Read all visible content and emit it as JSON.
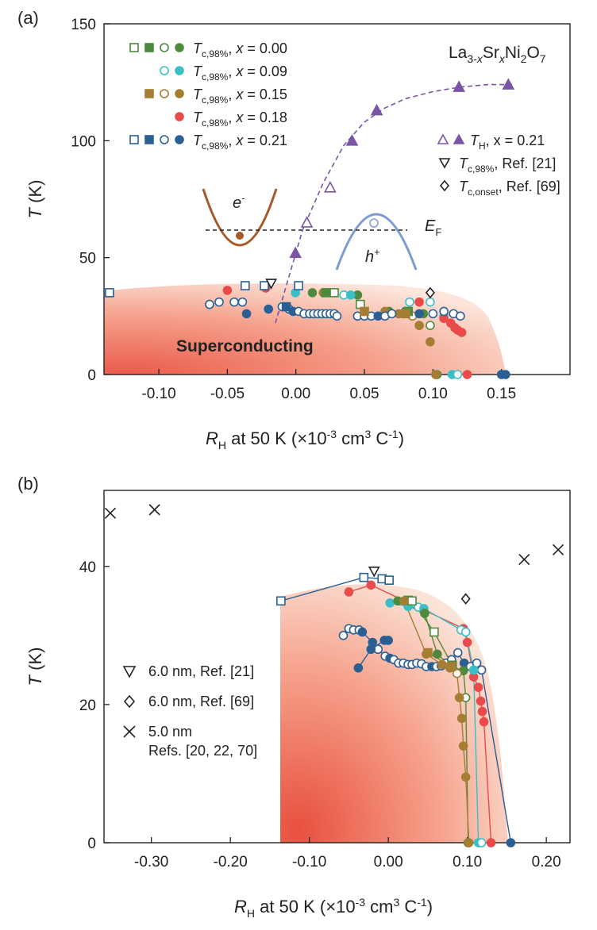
{
  "colors": {
    "x000": "#4e8a3c",
    "x009": "#3bbfc6",
    "x015": "#a57d33",
    "x018": "#e94b4a",
    "x021": "#2a5f93",
    "tH": "#7a55a6",
    "band_e": "#a8592a",
    "band_h": "#7d9cd0",
    "marker_ref": "#222222"
  },
  "chart_data": [
    {
      "panel": "(a)",
      "type": "scatter",
      "title": "La3-xSrxNi2O7",
      "formula": {
        "t1": "La",
        "s1": "3-",
        "s2": "x",
        "t2": "Sr",
        "s3": "x",
        "t3": "Ni",
        "s4": "2",
        "t4": "O",
        "s5": "7"
      },
      "xlabel": {
        "main": "R",
        "sub": "H",
        "text": " at 50 K (×10",
        "sup1": "-3",
        "mid": " cm",
        "sup2": "3",
        "end": " C",
        "sup3": "-1",
        "close": ")"
      },
      "ylabel": {
        "italic": "T",
        "unit": " (K)"
      },
      "xlim": [
        -0.14,
        0.2
      ],
      "ylim": [
        0,
        150
      ],
      "xticks": [
        "-0.10",
        "-0.05",
        "0.00",
        "0.05",
        "0.10",
        "0.15"
      ],
      "xtick_values": [
        -0.1,
        -0.05,
        0.0,
        0.05,
        0.1,
        0.15
      ],
      "yticks": [
        "0",
        "50",
        "100",
        "150"
      ],
      "ytick_values": [
        0,
        50,
        100,
        150
      ],
      "region_label": "Superconducting",
      "inset": {
        "electron": "e",
        "electron_sup": "-",
        "hole": "h",
        "hole_sup": "+",
        "fermi": "E",
        "fermi_sub": "F"
      },
      "legend_left": [
        {
          "sub": "c,98%",
          "x": "0.00"
        },
        {
          "sub": "c,98%",
          "x": "0.09"
        },
        {
          "sub": "c,98%",
          "x": "0.15"
        },
        {
          "sub": "c,98%",
          "x": "0.18"
        },
        {
          "sub": "c,98%",
          "x": "0.21"
        }
      ],
      "legend_right": [
        {
          "sub": "H",
          "text": ", x = 0.21"
        },
        {
          "sub": "c,98%",
          "text": ", Ref. [21]"
        },
        {
          "sub": "c,onset",
          "text": ", Ref. [69]"
        }
      ],
      "series": [
        {
          "name": "TH, x = 0.21",
          "color_key": "tH",
          "marker": "tri-up",
          "x": [
            -0.0003,
            0.008,
            0.025,
            0.041,
            0.059,
            0.119,
            0.155
          ],
          "y": [
            52,
            65,
            80,
            100,
            113,
            123,
            124
          ],
          "filled": [
            true,
            false,
            false,
            true,
            true,
            true,
            true
          ],
          "open": [
            false,
            true,
            true,
            false,
            false,
            false,
            false
          ]
        },
        {
          "name": "Tc,98%, x = 0.00",
          "color_key": "x000",
          "marker": "circle",
          "x": [
            0.012,
            0.045,
            0.068,
            0.082,
            0.093,
            0.098,
            0.103
          ],
          "y": [
            35,
            34,
            27,
            27,
            26,
            21,
            0
          ],
          "filled": [
            true,
            true,
            true,
            false,
            true,
            false,
            false
          ]
        },
        {
          "name": "Tc,98%, x = 0.09",
          "color_key": "x009",
          "marker": "circle",
          "x": [
            -0.0003,
            0.035,
            0.04,
            0.083,
            0.098,
            0.108,
            0.114,
            0.118
          ],
          "y": [
            35,
            34,
            34,
            31,
            31,
            25,
            0,
            0
          ],
          "filled": [
            true,
            false,
            true,
            false,
            false,
            true,
            true,
            false
          ]
        },
        {
          "name": "Tc,98%, x = 0.15",
          "color_key": "x015",
          "marker": "circle",
          "x": [
            0.02,
            0.05,
            0.065,
            0.075,
            0.085,
            0.09,
            0.098,
            0.102
          ],
          "y": [
            35,
            26,
            27,
            26,
            25,
            21,
            14,
            0
          ],
          "filled": [
            true,
            true,
            true,
            true,
            false,
            true,
            true,
            true
          ]
        },
        {
          "name": "Tc,98%, x = 0.18",
          "color_key": "x018",
          "marker": "circle",
          "x": [
            -0.05,
            -0.022,
            0.09,
            0.108,
            0.113,
            0.116,
            0.118,
            0.121,
            0.125
          ],
          "y": [
            36,
            37,
            31,
            24,
            22,
            20,
            19,
            18,
            0
          ],
          "filled": [
            true,
            true,
            true,
            true,
            true,
            true,
            true,
            true,
            true
          ]
        },
        {
          "name": "Tc,98%, x = 0.21",
          "color_key": "x021",
          "marker": "circle",
          "x": [
            -0.063,
            -0.056,
            -0.045,
            -0.039,
            -0.036,
            -0.02,
            -0.01,
            -0.005,
            -0.002,
            0.002,
            0.006,
            0.01,
            0.013,
            0.016,
            0.019,
            0.022,
            0.025,
            0.028,
            0.03,
            0.045,
            0.05,
            0.055,
            0.06,
            0.065,
            0.07,
            0.08,
            0.09,
            0.1,
            0.108,
            0.115,
            0.12,
            0.15,
            0.153
          ],
          "y": [
            30,
            31,
            31,
            31,
            26,
            28,
            29,
            28,
            27,
            27,
            26,
            26,
            26,
            26,
            26,
            26,
            26,
            26,
            25,
            25,
            25,
            25,
            25,
            25,
            26,
            27,
            26,
            26,
            27,
            26,
            25,
            0,
            0
          ],
          "filled": [
            false,
            false,
            false,
            false,
            true,
            true,
            false,
            false,
            true,
            false,
            false,
            false,
            false,
            false,
            false,
            false,
            false,
            false,
            false,
            false,
            false,
            false,
            true,
            false,
            false,
            false,
            true,
            false,
            false,
            false,
            false,
            true,
            true
          ]
        },
        {
          "name": "Tc,98%, x = 0.00 squares",
          "color_key": "x000",
          "marker": "square",
          "x": [
            0.022,
            0.028,
            0.047,
            0.082
          ],
          "y": [
            35,
            35,
            30,
            27
          ],
          "filled": [
            true,
            false,
            false,
            true
          ]
        },
        {
          "name": "Tc,98%, x = 0.15 squares",
          "color_key": "x015",
          "marker": "square",
          "x": [
            0.05,
            0.08
          ],
          "y": [
            27,
            26
          ],
          "filled": [
            true,
            true
          ]
        },
        {
          "name": "Tc,98%, x = 0.21 squares",
          "color_key": "x021",
          "marker": "square",
          "x": [
            -0.136,
            -0.037,
            -0.023,
            -0.007,
            0.002
          ],
          "y": [
            35,
            38,
            38,
            29,
            38
          ],
          "filled": [
            false,
            false,
            false,
            true,
            false
          ]
        },
        {
          "name": "Tc,98%, Ref. [21]",
          "color_key": "marker_ref",
          "marker": "tri-down",
          "x": [
            -0.018
          ],
          "y": [
            39
          ],
          "filled": [
            false
          ]
        },
        {
          "name": "Tc,onset, Ref. [69]",
          "color_key": "marker_ref",
          "marker": "diamond",
          "x": [
            0.098
          ],
          "y": [
            35
          ],
          "filled": [
            false
          ]
        }
      ],
      "dashed_curve": {
        "x": [
          -0.015,
          -0.005,
          0.005,
          0.02,
          0.035,
          0.05,
          0.065,
          0.08,
          0.1,
          0.12,
          0.14,
          0.16
        ],
        "y": [
          22,
          42,
          62,
          82,
          98,
          108,
          114,
          118,
          121,
          123,
          124,
          124
        ]
      }
    },
    {
      "panel": "(b)",
      "type": "line",
      "xlabel": {
        "main": "R",
        "sub": "H",
        "text": " at 50 K (×10",
        "sup1": "-3",
        "mid": " cm",
        "sup2": "3",
        "end": " C",
        "sup3": "-1",
        "close": ")"
      },
      "ylabel": {
        "italic": "T",
        "unit": " (K)"
      },
      "xlim": [
        -0.36,
        0.23
      ],
      "ylim": [
        0,
        51
      ],
      "xticks": [
        "-0.30",
        "-0.20",
        "-0.10",
        "0.00",
        "0.10",
        "0.20"
      ],
      "xtick_values": [
        -0.3,
        -0.2,
        -0.1,
        0.0,
        0.1,
        0.2
      ],
      "yticks": [
        "0",
        "20",
        "40"
      ],
      "ytick_values": [
        0,
        20,
        40
      ],
      "legend": [
        {
          "marker": "tri-down",
          "label": "6.0 nm, Ref. [21]"
        },
        {
          "marker": "diamond",
          "label": "6.0 nm, Ref. [69]"
        },
        {
          "marker": "cross",
          "label1": "5.0 nm",
          "label2": "Refs. [20, 22, 70]"
        }
      ],
      "series": [
        {
          "name": "x = 0.21 (a)",
          "color_key": "x021",
          "x": [
            -0.136,
            -0.031,
            -0.008,
            0.001
          ],
          "y": [
            35,
            38.4,
            38.2,
            38
          ],
          "marker": "square",
          "filled": [
            false,
            false,
            false,
            false
          ]
        },
        {
          "name": "x = 0.21 (b)",
          "color_key": "x021",
          "x": [
            -0.057,
            -0.05,
            -0.044,
            -0.037,
            -0.033,
            -0.02,
            -0.013,
            -0.004,
            0.002,
            0.007,
            0.013,
            0.019,
            0.025,
            0.03,
            0.036,
            0.042,
            0.048,
            0.055,
            0.061,
            0.067,
            0.073,
            0.08,
            0.088,
            0.096,
            0.104,
            0.112,
            0.118,
            0.155
          ],
          "y": [
            30,
            31,
            30.8,
            30.8,
            30.5,
            29,
            28,
            27,
            26.7,
            26.5,
            26,
            26,
            25.8,
            25.8,
            26,
            25.9,
            25.5,
            25.5,
            25.5,
            25.6,
            26,
            26.5,
            27.5,
            26,
            25.5,
            26,
            25,
            0
          ],
          "marker": "circle",
          "filled": [
            false,
            false,
            false,
            false,
            true,
            true,
            false,
            false,
            true,
            false,
            false,
            false,
            false,
            false,
            false,
            false,
            false,
            true,
            false,
            false,
            false,
            false,
            false,
            true,
            false,
            false,
            false,
            true
          ]
        },
        {
          "name": "x = 0.21 (c)",
          "color_key": "x021",
          "x": [
            -0.038,
            -0.022,
            -0.005,
            0.0
          ],
          "y": [
            25.3,
            28,
            29.3,
            29.3
          ],
          "marker": "circle",
          "filled": [
            true,
            true,
            true,
            true
          ]
        },
        {
          "name": "x = 0.18",
          "color_key": "x018",
          "x": [
            -0.05,
            -0.022,
            0.095,
            0.1,
            0.108,
            0.114,
            0.117,
            0.119,
            0.121,
            0.13
          ],
          "y": [
            36.3,
            37.3,
            31,
            29,
            24,
            22.5,
            20.5,
            19,
            17.5,
            0
          ],
          "marker": "circle",
          "filled": [
            true,
            true,
            true,
            true,
            true,
            true,
            true,
            true,
            true,
            true
          ]
        },
        {
          "name": "x = 0.09",
          "color_key": "x009",
          "x": [
            0.002,
            0.025,
            0.038,
            0.045,
            0.092,
            0.098,
            0.108,
            0.114,
            0.118
          ],
          "y": [
            34.7,
            34.2,
            34.1,
            33.9,
            30.8,
            30.5,
            25,
            0,
            0
          ],
          "marker": "circle",
          "filled": [
            true,
            true,
            false,
            true,
            false,
            false,
            true,
            true,
            false
          ]
        },
        {
          "name": "x = 0.00",
          "color_key": "x000",
          "x": [
            0.012,
            0.046,
            0.062,
            0.078,
            0.095,
            0.098,
            0.101
          ],
          "y": [
            35,
            33.2,
            27.3,
            25.6,
            24.9,
            21,
            0
          ],
          "marker": "circle",
          "filled": [
            true,
            true,
            true,
            false,
            true,
            false,
            false
          ]
        },
        {
          "name": "x = 0.00 squares",
          "color_key": "x000",
          "x": [
            0.025,
            0.03,
            0.058,
            0.081
          ],
          "y": [
            35.1,
            35,
            30.5,
            25.7
          ],
          "marker": "square",
          "filled": [
            true,
            false,
            false,
            true
          ]
        },
        {
          "name": "x = 0.15",
          "color_key": "x015",
          "x": [
            0.02,
            0.048,
            0.068,
            0.078,
            0.087,
            0.09,
            0.093,
            0.095,
            0.098,
            0.102
          ],
          "y": [
            35,
            27.3,
            25.8,
            25.3,
            24.5,
            21,
            18,
            14,
            9.5,
            0
          ],
          "marker": "circle",
          "filled": [
            true,
            true,
            true,
            true,
            false,
            true,
            true,
            true,
            true,
            true
          ]
        },
        {
          "name": "x = 0.15 squares",
          "color_key": "x015",
          "x": [
            0.05,
            0.08
          ],
          "y": [
            27.5,
            25.5
          ],
          "marker": "square",
          "filled": [
            true,
            true
          ]
        },
        {
          "name": "Ref. [21]",
          "color_key": "marker_ref",
          "x": [
            -0.018
          ],
          "y": [
            39.3
          ],
          "marker": "tri-down",
          "filled": [
            false
          ]
        },
        {
          "name": "Ref. [69]",
          "color_key": "marker_ref",
          "x": [
            0.098
          ],
          "y": [
            35.3
          ],
          "marker": "diamond",
          "filled": [
            false
          ]
        },
        {
          "name": "5.0 nm Refs",
          "color_key": "marker_ref",
          "x": [
            -0.352,
            -0.296,
            0.172,
            0.215
          ],
          "y": [
            47.7,
            48.2,
            41,
            42.4
          ],
          "marker": "cross",
          "filled": [
            false,
            false,
            false,
            false
          ]
        }
      ]
    }
  ]
}
